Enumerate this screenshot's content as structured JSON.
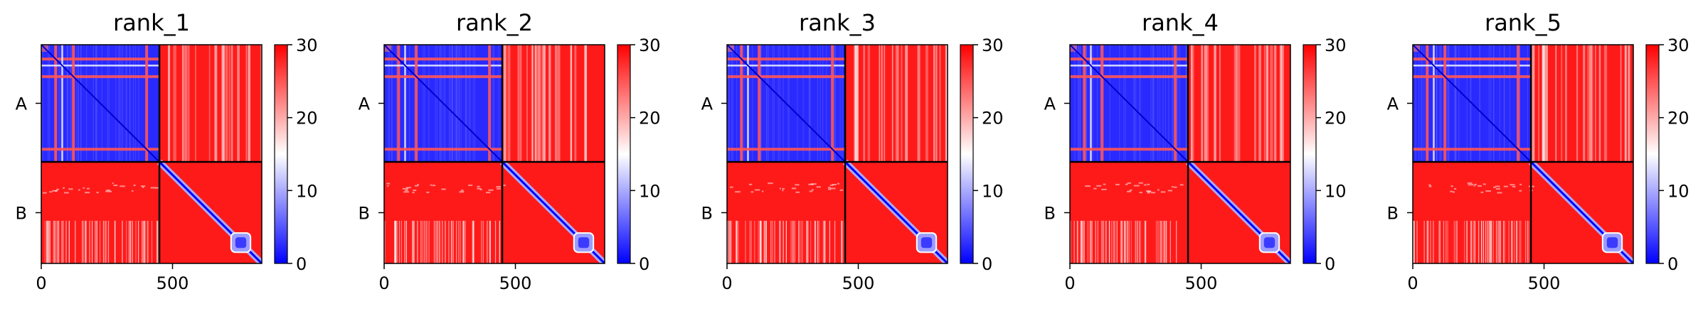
{
  "chart_data": [
    {
      "type": "heatmap",
      "title": "rank_1",
      "chains": [
        "A",
        "B"
      ],
      "chain_boundary": 450,
      "length": 840,
      "x_ticks": [
        0,
        500
      ],
      "colorbar": {
        "min": 0,
        "max": 30,
        "ticks": [
          0,
          10,
          20,
          30
        ],
        "colors": [
          "#0000ff",
          "#ffffff",
          "#ff0000"
        ]
      }
    },
    {
      "type": "heatmap",
      "title": "rank_2",
      "chains": [
        "A",
        "B"
      ],
      "chain_boundary": 450,
      "length": 840,
      "x_ticks": [
        0,
        500
      ],
      "colorbar": {
        "min": 0,
        "max": 30,
        "ticks": [
          0,
          10,
          20,
          30
        ],
        "colors": [
          "#0000ff",
          "#ffffff",
          "#ff0000"
        ]
      }
    },
    {
      "type": "heatmap",
      "title": "rank_3",
      "chains": [
        "A",
        "B"
      ],
      "chain_boundary": 450,
      "length": 840,
      "x_ticks": [
        0,
        500
      ],
      "colorbar": {
        "min": 0,
        "max": 30,
        "ticks": [
          0,
          10,
          20,
          30
        ],
        "colors": [
          "#0000ff",
          "#ffffff",
          "#ff0000"
        ]
      }
    },
    {
      "type": "heatmap",
      "title": "rank_4",
      "chains": [
        "A",
        "B"
      ],
      "chain_boundary": 450,
      "length": 840,
      "x_ticks": [
        0,
        500
      ],
      "colorbar": {
        "min": 0,
        "max": 30,
        "ticks": [
          0,
          10,
          20,
          30
        ],
        "colors": [
          "#0000ff",
          "#ffffff",
          "#ff0000"
        ]
      }
    },
    {
      "type": "heatmap",
      "title": "rank_5",
      "chains": [
        "A",
        "B"
      ],
      "chain_boundary": 450,
      "length": 840,
      "x_ticks": [
        0,
        500
      ],
      "colorbar": {
        "min": 0,
        "max": 30,
        "ticks": [
          0,
          10,
          20,
          30
        ],
        "colors": [
          "#0000ff",
          "#ffffff",
          "#ff0000"
        ]
      }
    }
  ]
}
